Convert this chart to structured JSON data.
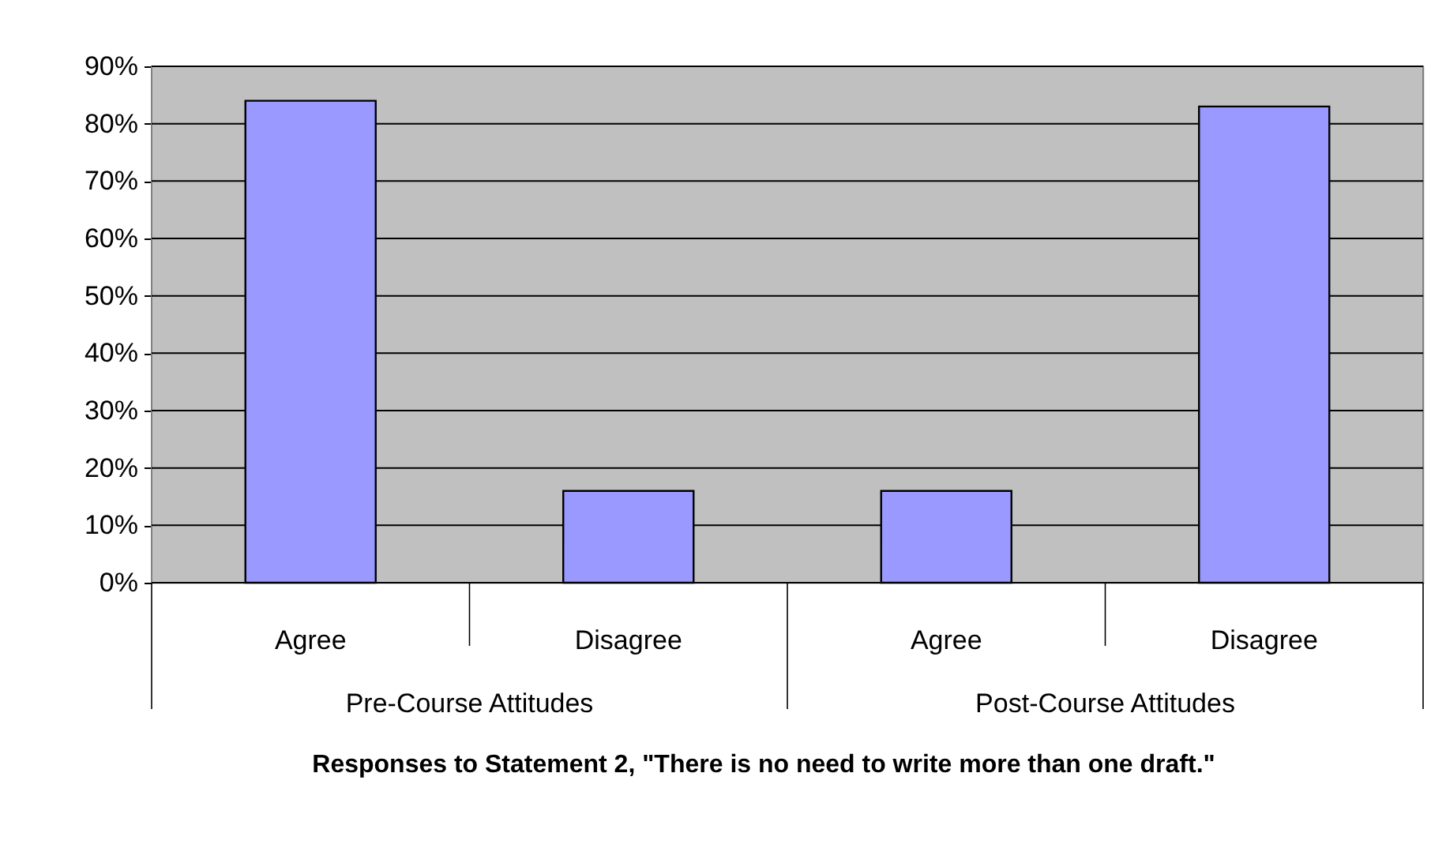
{
  "chart_data": {
    "type": "bar",
    "xlabel": "Responses to Statement 2, \"There is no need to write more than one draft.\"",
    "categories": [
      "Agree",
      "Disagree",
      "Agree",
      "Disagree"
    ],
    "values": [
      84,
      16,
      16,
      83
    ],
    "color": "#9999ff",
    "annotations": [
      "Pre-Course Attitudes",
      "Post-Course Attitudes"
    ],
    "ylim": [
      0,
      90
    ],
    "yticks": [
      {
        "value": 0,
        "label": "0%"
      },
      {
        "value": 10,
        "label": "10%"
      },
      {
        "value": 20,
        "label": "20%"
      },
      {
        "value": 30,
        "label": "30%"
      },
      {
        "value": 40,
        "label": "40%"
      },
      {
        "value": 50,
        "label": "50%"
      },
      {
        "value": 60,
        "label": "60%"
      },
      {
        "value": 70,
        "label": "70%"
      },
      {
        "value": 80,
        "label": "80%"
      },
      {
        "value": 90,
        "label": "90%"
      }
    ],
    "grid": "y"
  }
}
